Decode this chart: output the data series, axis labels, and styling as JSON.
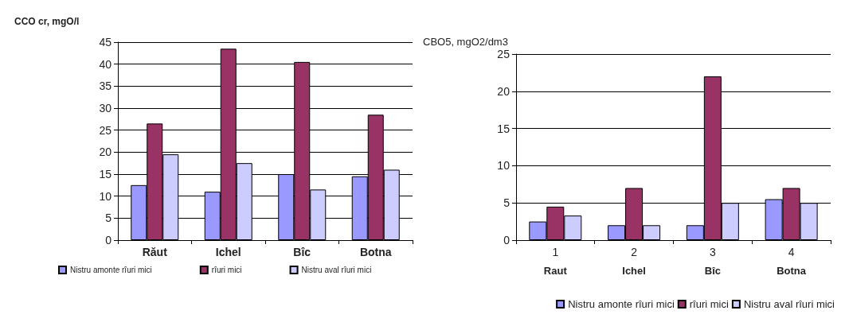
{
  "chart_data": [
    {
      "type": "bar",
      "ylabel": "CCO cr, mgO/l",
      "categories": [
        "Răut",
        "Ichel",
        "Bîc",
        "Botna"
      ],
      "series": [
        {
          "name": "Nistru amonte rîuri mici",
          "color": "#9999ff",
          "values": [
            12.5,
            11,
            15,
            14.5
          ]
        },
        {
          "name": "rîuri mici",
          "color": "#993366",
          "values": [
            26.5,
            43.5,
            40.5,
            28.5
          ]
        },
        {
          "name": "Nistru aval rîuri mici",
          "color": "#ccccff",
          "values": [
            19.5,
            17.5,
            11.5,
            16
          ]
        }
      ],
      "ylim": [
        0,
        45
      ],
      "yticks": [
        0,
        5,
        10,
        15,
        20,
        25,
        30,
        35,
        40,
        45
      ],
      "grid": "y",
      "legend": "bottom"
    },
    {
      "type": "bar",
      "ylabel": "CBO5, mgO2/dm3",
      "categories": [
        "1",
        "2",
        "3",
        "4"
      ],
      "annotations": [
        "Raut",
        "Ichel",
        "Bîc",
        "Botna"
      ],
      "series": [
        {
          "name": "Nistru amonte rîuri mici",
          "color": "#9999ff",
          "values": [
            2.5,
            2,
            2,
            5.5
          ]
        },
        {
          "name": "rîuri mici",
          "color": "#993366",
          "values": [
            4.5,
            7,
            22,
            7
          ]
        },
        {
          "name": "Nistru aval rîuri mici",
          "color": "#ccccff",
          "values": [
            3.3,
            2,
            5,
            5
          ]
        }
      ],
      "ylim": [
        0,
        25
      ],
      "yticks": [
        0,
        5,
        10,
        15,
        20,
        25
      ],
      "grid": "y",
      "legend": "bottom right"
    }
  ]
}
